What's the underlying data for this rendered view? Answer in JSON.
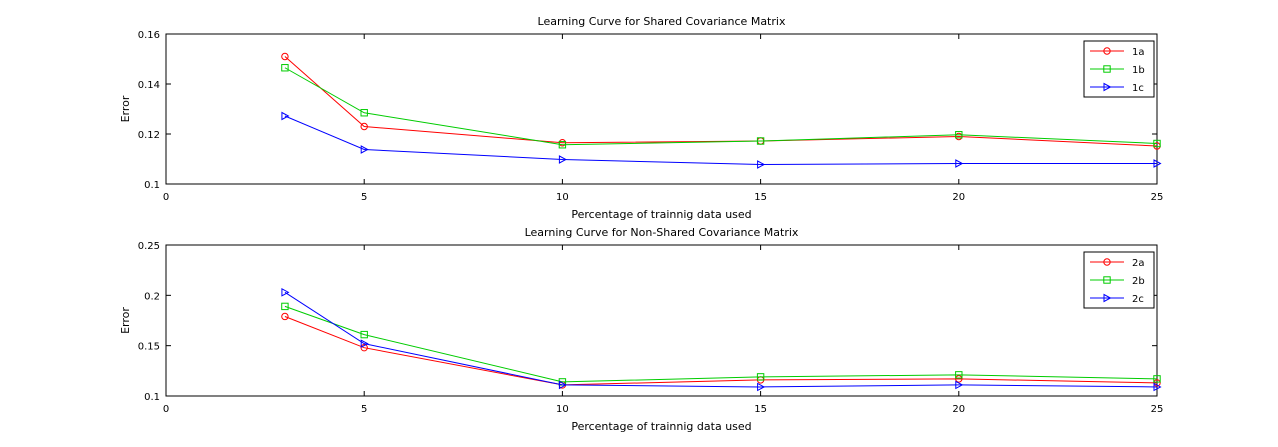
{
  "chart_data": [
    {
      "type": "line",
      "title": "Learning Curve for Shared Covariance Matrix",
      "xlabel": "Percentage of trainnig data used",
      "ylabel": "Error",
      "xlim": [
        0,
        25
      ],
      "ylim": [
        0.1,
        0.16
      ],
      "xticks": [
        "0",
        "5",
        "10",
        "15",
        "20",
        "25"
      ],
      "yticks": [
        "0.1",
        "0.12",
        "0.14",
        "0.16"
      ],
      "x": [
        3,
        5,
        10,
        15,
        20,
        25
      ],
      "grid": false,
      "legend_position": "top-right",
      "series": [
        {
          "name": "1a",
          "color": "#ff0000",
          "marker": "circle",
          "values": [
            0.151,
            0.123,
            0.1165,
            0.1172,
            0.119,
            0.1152
          ]
        },
        {
          "name": "1b",
          "color": "#00cc00",
          "marker": "square",
          "values": [
            0.1465,
            0.1285,
            0.1157,
            0.1172,
            0.1197,
            0.1162
          ]
        },
        {
          "name": "1c",
          "color": "#0000ff",
          "marker": "triangle-right",
          "values": [
            0.1272,
            0.1138,
            0.1098,
            0.1078,
            0.1082,
            0.1082
          ]
        }
      ]
    },
    {
      "type": "line",
      "title": "Learning Curve for Non-Shared Covariance Matrix",
      "xlabel": "Percentage of trainnig data used",
      "ylabel": "Error",
      "xlim": [
        0,
        25
      ],
      "ylim": [
        0.1,
        0.25
      ],
      "xticks": [
        "0",
        "5",
        "10",
        "15",
        "20",
        "25"
      ],
      "yticks": [
        "0.1",
        "0.15",
        "0.2",
        "0.25"
      ],
      "x": [
        3,
        5,
        10,
        15,
        20,
        25
      ],
      "grid": false,
      "legend_position": "top-right",
      "series": [
        {
          "name": "2a",
          "color": "#ff0000",
          "marker": "circle",
          "values": [
            0.179,
            0.148,
            0.111,
            0.116,
            0.117,
            0.113
          ]
        },
        {
          "name": "2b",
          "color": "#00cc00",
          "marker": "square",
          "values": [
            0.189,
            0.161,
            0.114,
            0.119,
            0.121,
            0.117
          ]
        },
        {
          "name": "2c",
          "color": "#0000ff",
          "marker": "triangle-right",
          "values": [
            0.203,
            0.152,
            0.111,
            0.109,
            0.111,
            0.109
          ]
        }
      ]
    }
  ]
}
